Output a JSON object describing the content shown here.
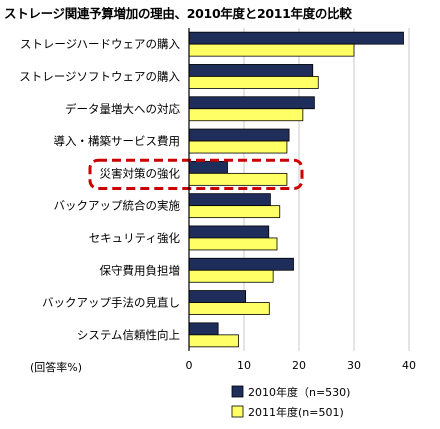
{
  "chart_data": {
    "type": "bar",
    "orientation": "horizontal",
    "title": "ストレージ関連予算増加の理由、2010年度と2011年度の比較",
    "unit_label": "(回答率%)",
    "categories": [
      "ストレージハードウェアの購入",
      "ストレージソフトウェアの購入",
      "データ量増大への対応",
      "導入・構築サービス費用",
      "災害対策の強化",
      "バックアップ統合の実施",
      "セキュリティ強化",
      "保守費用負担増",
      "バックアップ手法の見直し",
      "システム信頼性向上"
    ],
    "series": [
      {
        "name": "2010年度（n=530)",
        "color": "#1f2d5a",
        "values": [
          39,
          22.5,
          22.8,
          18.2,
          7.0,
          14.8,
          14.5,
          19.0,
          10.3,
          5.3
        ]
      },
      {
        "name": "2011年度(n=501)",
        "color": "#ffff66",
        "values": [
          30,
          23.5,
          20.7,
          17.8,
          17.8,
          16.5,
          16.0,
          15.3,
          14.6,
          9.0
        ]
      }
    ],
    "xlim": [
      0,
      40
    ],
    "xticks": [
      "0",
      "10",
      "20",
      "30",
      "40"
    ],
    "highlight_category": "災害対策の強化",
    "highlight_color": "#cc0000",
    "grid": true,
    "legend_position": "bottom"
  }
}
